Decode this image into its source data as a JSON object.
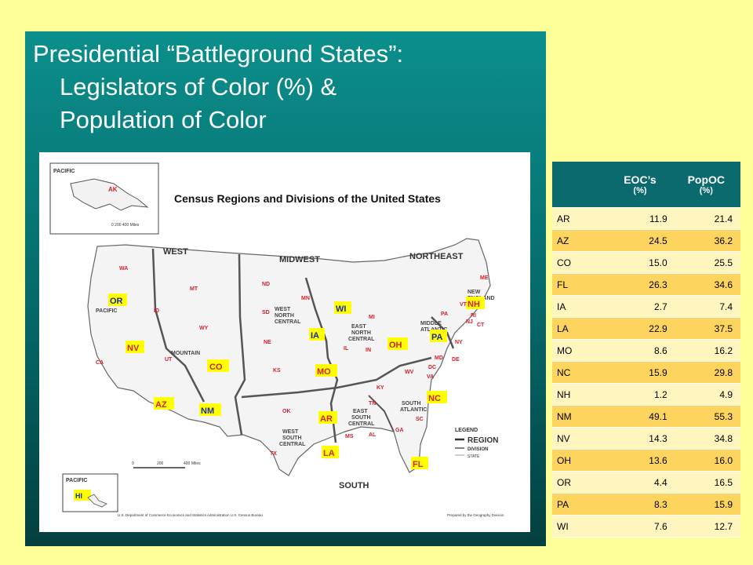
{
  "slide": {
    "title_line1": "Presidential “Battleground States”:",
    "title_line2": "Legislators of Color (%) &",
    "title_line3": "Population of Color"
  },
  "map": {
    "heading": "Census Regions and Divisions of the United States",
    "regions": [
      "WEST",
      "MIDWEST",
      "NORTHEAST",
      "SOUTH"
    ],
    "divisions": {
      "pacific": "PACIFIC",
      "mountain": "MOUNTAIN",
      "wnc_1": "WEST",
      "wnc_2": "NORTH",
      "wnc_3": "CENTRAL",
      "enc_1": "EAST",
      "enc_2": "NORTH",
      "enc_3": "CENTRAL",
      "ma_1": "MIDDLE",
      "ma_2": "ATLANTIC",
      "ne_1": "NEW",
      "ne_2": "ENGLAND",
      "sa_1": "SOUTH",
      "sa_2": "ATLANTIC",
      "esc_1": "EAST",
      "esc_2": "SOUTH",
      "esc_3": "CENTRAL",
      "wsc_1": "WEST",
      "wsc_2": "SOUTH",
      "wsc_3": "CENTRAL"
    },
    "inset_pacific_1": "PACIFIC",
    "inset_pacific_2": "PACIFIC",
    "scale_0": "0",
    "scale_200": "200",
    "scale_400": "400",
    "scale_miles": "Miles",
    "legend_title": "LEGEND",
    "legend_region": "REGION",
    "legend_division": "DIVISION",
    "legend_state": "STATE",
    "credit_left": "U.S. Department of Commerce  Economics and Statistics Administration  U.S. Census Bureau",
    "credit_right": "Prepared by the Geography Division",
    "states_red": [
      "AK",
      "WA",
      "OR",
      "ID",
      "MT",
      "WY",
      "NV",
      "UT",
      "CO",
      "AZ",
      "NM",
      "CA",
      "ND",
      "SD",
      "NE",
      "KS",
      "MN",
      "IA",
      "MO",
      "WI",
      "IL",
      "MI",
      "IN",
      "OH",
      "KY",
      "TN",
      "MS",
      "AL",
      "OK",
      "AR",
      "LA",
      "TX",
      "WV",
      "VA",
      "NC",
      "SC",
      "GA",
      "FL",
      "MD",
      "DE",
      "DC",
      "PA",
      "NY",
      "NJ",
      "CT",
      "RI",
      "MA",
      "VT",
      "NH",
      "ME",
      "HI"
    ],
    "battleground": [
      "OR",
      "NV",
      "CO",
      "AZ",
      "NM",
      "IA",
      "WI",
      "MO",
      "OH",
      "AR",
      "LA",
      "NC",
      "FL",
      "PA",
      "NH",
      "HI"
    ],
    "colors": {
      "red": "#d4202a",
      "blue": "#1a2aa8",
      "highlight": "#ffff00"
    }
  },
  "table": {
    "headers": {
      "state": "",
      "eoc": "EOC’s",
      "eoc_unit": "(%)",
      "popoc": "PopOC",
      "popoc_unit": "(%)"
    },
    "rows": [
      {
        "state": "AR",
        "eoc": "11.9",
        "popoc": "21.4"
      },
      {
        "state": "AZ",
        "eoc": "24.5",
        "popoc": "36.2"
      },
      {
        "state": "CO",
        "eoc": "15.0",
        "popoc": "25.5"
      },
      {
        "state": "FL",
        "eoc": "26.3",
        "popoc": "34.6"
      },
      {
        "state": "IA",
        "eoc": "2.7",
        "popoc": "7.4"
      },
      {
        "state": "LA",
        "eoc": "22.9",
        "popoc": "37.5"
      },
      {
        "state": "MO",
        "eoc": "8.6",
        "popoc": "16.2"
      },
      {
        "state": "NC",
        "eoc": "15.9",
        "popoc": "29.8"
      },
      {
        "state": "NH",
        "eoc": "1.2",
        "popoc": "4.9"
      },
      {
        "state": "NM",
        "eoc": "49.1",
        "popoc": "55.3"
      },
      {
        "state": "NV",
        "eoc": "14.3",
        "popoc": "34.8"
      },
      {
        "state": "OH",
        "eoc": "13.6",
        "popoc": "16.0"
      },
      {
        "state": "OR",
        "eoc": "4.4",
        "popoc": "16.5"
      },
      {
        "state": "PA",
        "eoc": "8.3",
        "popoc": "15.9"
      },
      {
        "state": "WI",
        "eoc": "7.6",
        "popoc": "12.7"
      }
    ]
  }
}
